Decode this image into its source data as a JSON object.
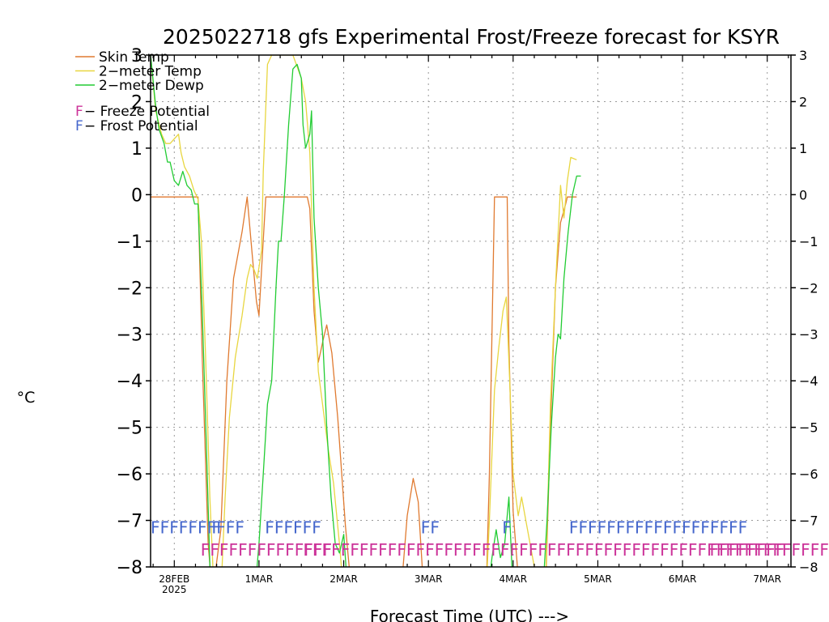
{
  "chart_data": {
    "type": "line",
    "title": "2025022718 gfs Experimental Frost/Freeze forecast for KSYR",
    "xlabel": "Forecast Time (UTC) --->",
    "ylabel": "°C",
    "ylim": [
      -8,
      3
    ],
    "xlim": [
      -0.28,
      7.28
    ],
    "grid": true,
    "yticks": [
      3,
      2,
      1,
      0,
      -1,
      -2,
      -3,
      -4,
      -5,
      -6,
      -7,
      -8
    ],
    "yticklabels": [
      "3",
      "2",
      "1",
      "0",
      "−1",
      "−2",
      "−3",
      "−4",
      "−5",
      "−6",
      "−7",
      "−8"
    ],
    "xticks": [
      {
        "day": 0,
        "label": "28FEB",
        "sublabel": "2025"
      },
      {
        "day": 1,
        "label": "1MAR"
      },
      {
        "day": 2,
        "label": "2MAR"
      },
      {
        "day": 3,
        "label": "3MAR"
      },
      {
        "day": 4,
        "label": "4MAR"
      },
      {
        "day": 5,
        "label": "5MAR"
      },
      {
        "day": 6,
        "label": "6MAR"
      },
      {
        "day": 7,
        "label": "7MAR"
      }
    ],
    "x_unit": "days from 28FEB 00 UTC",
    "legend": {
      "placement": "top-left",
      "series_entries": [
        "Skin Temp",
        "2−meter Temp",
        "2−meter Dewp"
      ],
      "marker_entries": [
        {
          "mark": "F",
          "text": " − Freeze Potential",
          "color": "#cc3399"
        },
        {
          "mark": "F",
          "text": " − Frost Potential",
          "color": "#4466cc"
        }
      ]
    },
    "series": [
      {
        "name": "Skin Temp",
        "color": "#e07a30",
        "points": [
          [
            -0.28,
            -0.05
          ],
          [
            0.28,
            -0.05
          ],
          [
            0.33,
            -3.5
          ],
          [
            0.4,
            -7.5
          ],
          [
            0.45,
            -8.6
          ],
          [
            0.55,
            -7.2
          ],
          [
            0.62,
            -4.0
          ],
          [
            0.7,
            -1.8
          ],
          [
            0.8,
            -0.8
          ],
          [
            0.86,
            -0.05
          ],
          [
            0.92,
            -1.3
          ],
          [
            0.97,
            -2.3
          ],
          [
            1.0,
            -2.6
          ],
          [
            1.04,
            -1.3
          ],
          [
            1.08,
            -0.05
          ],
          [
            1.15,
            -0.05
          ],
          [
            1.57,
            -0.05
          ],
          [
            1.6,
            -0.3
          ],
          [
            1.65,
            -2.5
          ],
          [
            1.7,
            -3.6
          ],
          [
            1.76,
            -3.1
          ],
          [
            1.8,
            -2.8
          ],
          [
            1.86,
            -3.4
          ],
          [
            1.93,
            -4.8
          ],
          [
            2.02,
            -7.1
          ],
          [
            2.1,
            -8.7
          ],
          [
            2.67,
            -8.7
          ],
          [
            2.75,
            -6.9
          ],
          [
            2.82,
            -6.1
          ],
          [
            2.88,
            -6.6
          ],
          [
            2.95,
            -8.7
          ],
          [
            3.68,
            -8.7
          ],
          [
            3.72,
            -6.0
          ],
          [
            3.78,
            -0.05
          ],
          [
            3.93,
            -0.05
          ],
          [
            3.95,
            -3.2
          ],
          [
            4.0,
            -6.8
          ],
          [
            4.08,
            -8.7
          ],
          [
            4.38,
            -8.7
          ],
          [
            4.44,
            -5.0
          ],
          [
            4.5,
            -2.0
          ],
          [
            4.56,
            -0.6
          ],
          [
            4.62,
            -0.2
          ],
          [
            4.64,
            -0.05
          ],
          [
            4.75,
            -0.05
          ]
        ]
      },
      {
        "name": "2−meter Temp",
        "color": "#e8d640",
        "points": [
          [
            -0.28,
            3.0
          ],
          [
            -0.22,
            1.8
          ],
          [
            -0.15,
            1.3
          ],
          [
            -0.1,
            1.1
          ],
          [
            -0.05,
            1.1
          ],
          [
            0.0,
            1.2
          ],
          [
            0.05,
            1.3
          ],
          [
            0.08,
            0.9
          ],
          [
            0.12,
            0.6
          ],
          [
            0.18,
            0.4
          ],
          [
            0.23,
            0.1
          ],
          [
            0.28,
            -0.1
          ],
          [
            0.32,
            -1.0
          ],
          [
            0.37,
            -3.5
          ],
          [
            0.42,
            -6.5
          ],
          [
            0.47,
            -8.6
          ],
          [
            0.55,
            -8.6
          ],
          [
            0.6,
            -6.5
          ],
          [
            0.65,
            -4.8
          ],
          [
            0.72,
            -3.5
          ],
          [
            0.8,
            -2.6
          ],
          [
            0.86,
            -1.8
          ],
          [
            0.9,
            -1.5
          ],
          [
            0.94,
            -1.6
          ],
          [
            0.98,
            -1.8
          ],
          [
            1.03,
            -1.2
          ],
          [
            1.05,
            0.5
          ],
          [
            1.1,
            2.8
          ],
          [
            1.15,
            3.0
          ],
          [
            1.4,
            3.0
          ],
          [
            1.5,
            2.5
          ],
          [
            1.55,
            2.0
          ],
          [
            1.6,
            0.9
          ],
          [
            1.65,
            -2.0
          ],
          [
            1.7,
            -3.8
          ],
          [
            1.75,
            -4.5
          ],
          [
            1.82,
            -5.5
          ],
          [
            1.88,
            -6.2
          ],
          [
            1.95,
            -7.5
          ],
          [
            2.0,
            -8.6
          ],
          [
            3.68,
            -8.6
          ],
          [
            3.72,
            -7.0
          ],
          [
            3.78,
            -4.2
          ],
          [
            3.83,
            -3.3
          ],
          [
            3.88,
            -2.5
          ],
          [
            3.92,
            -2.2
          ],
          [
            3.96,
            -4.0
          ],
          [
            4.0,
            -6.0
          ],
          [
            4.06,
            -6.9
          ],
          [
            4.1,
            -6.5
          ],
          [
            4.15,
            -7.0
          ],
          [
            4.25,
            -8.0
          ],
          [
            4.3,
            -8.6
          ],
          [
            4.38,
            -8.6
          ],
          [
            4.44,
            -4.5
          ],
          [
            4.5,
            -2.0
          ],
          [
            4.56,
            0.2
          ],
          [
            4.6,
            -0.5
          ],
          [
            4.64,
            0.3
          ],
          [
            4.68,
            0.8
          ],
          [
            4.75,
            0.75
          ]
        ]
      },
      {
        "name": "2−meter Dewp",
        "color": "#22cc33",
        "points": [
          [
            -0.28,
            3.0
          ],
          [
            -0.22,
            1.9
          ],
          [
            -0.18,
            1.4
          ],
          [
            -0.12,
            1.1
          ],
          [
            -0.08,
            0.7
          ],
          [
            -0.05,
            0.7
          ],
          [
            0.0,
            0.3
          ],
          [
            0.05,
            0.2
          ],
          [
            0.1,
            0.5
          ],
          [
            0.15,
            0.2
          ],
          [
            0.2,
            0.1
          ],
          [
            0.24,
            -0.2
          ],
          [
            0.28,
            -0.2
          ],
          [
            0.33,
            -2.5
          ],
          [
            0.38,
            -5.5
          ],
          [
            0.43,
            -8.6
          ],
          [
            0.95,
            -8.6
          ],
          [
            1.0,
            -7.5
          ],
          [
            1.05,
            -6.0
          ],
          [
            1.1,
            -4.5
          ],
          [
            1.15,
            -4.0
          ],
          [
            1.2,
            -2.0
          ],
          [
            1.23,
            -1.0
          ],
          [
            1.26,
            -1.0
          ],
          [
            1.3,
            0.0
          ],
          [
            1.35,
            1.5
          ],
          [
            1.4,
            2.7
          ],
          [
            1.45,
            2.8
          ],
          [
            1.5,
            2.5
          ],
          [
            1.52,
            1.5
          ],
          [
            1.55,
            1.0
          ],
          [
            1.6,
            1.3
          ],
          [
            1.62,
            1.8
          ],
          [
            1.65,
            -0.5
          ],
          [
            1.7,
            -2.0
          ],
          [
            1.75,
            -3.0
          ],
          [
            1.8,
            -5.0
          ],
          [
            1.85,
            -6.5
          ],
          [
            1.9,
            -7.5
          ],
          [
            1.95,
            -7.7
          ],
          [
            2.0,
            -7.3
          ],
          [
            2.05,
            -8.6
          ],
          [
            3.7,
            -8.6
          ],
          [
            3.75,
            -7.8
          ],
          [
            3.8,
            -7.2
          ],
          [
            3.85,
            -7.8
          ],
          [
            3.9,
            -7.5
          ],
          [
            3.95,
            -6.5
          ],
          [
            4.0,
            -8.6
          ],
          [
            4.35,
            -8.6
          ],
          [
            4.4,
            -7.0
          ],
          [
            4.45,
            -5.0
          ],
          [
            4.5,
            -3.5
          ],
          [
            4.53,
            -3.0
          ],
          [
            4.56,
            -3.1
          ],
          [
            4.6,
            -1.8
          ],
          [
            4.65,
            -0.8
          ],
          [
            4.7,
            0.0
          ],
          [
            4.75,
            0.4
          ],
          [
            4.8,
            0.4
          ]
        ]
      }
    ],
    "markers": [
      {
        "type": "Frost Potential",
        "color": "#4466cc",
        "row_value": -7.12,
        "text": "FFFFFFFFFF"
      },
      {
        "type": "Frost Potential",
        "color": "#4466cc",
        "row_value": -7.12,
        "text": "F"
      },
      {
        "type": "Frost Potential",
        "color": "#4466cc",
        "row_value": -7.12,
        "text": "FFFFFF"
      },
      {
        "type": "Frost Potential",
        "color": "#4466cc",
        "row_value": -7.12,
        "text": "FF"
      },
      {
        "type": "Frost Potential",
        "color": "#4466cc",
        "row_value": -7.12,
        "text": "F"
      },
      {
        "type": "Frost Potential",
        "color": "#4466cc",
        "row_value": -7.12,
        "text": "FFFFFFFFFFFFFFFFFFF"
      },
      {
        "type": "Freeze Potential",
        "color": "#cc3399",
        "row_value": -7.6,
        "text": "FFFFFFFFFFFFFF"
      },
      {
        "type": "Freeze Potential",
        "color": "#cc3399",
        "row_value": -7.6,
        "text": "FFFFFFFFFFFFFFFFFFFFFFFFFFFFFFFFFFFFFFFFFFFFFFFFFFFFFFFFFFFFFFFFFFFFFFFFFFFFFFFF"
      },
      {
        "type": "Freeze Potential",
        "color": "#cc3399",
        "row_value": -7.6,
        "text": "FFFFFFFF"
      }
    ]
  }
}
